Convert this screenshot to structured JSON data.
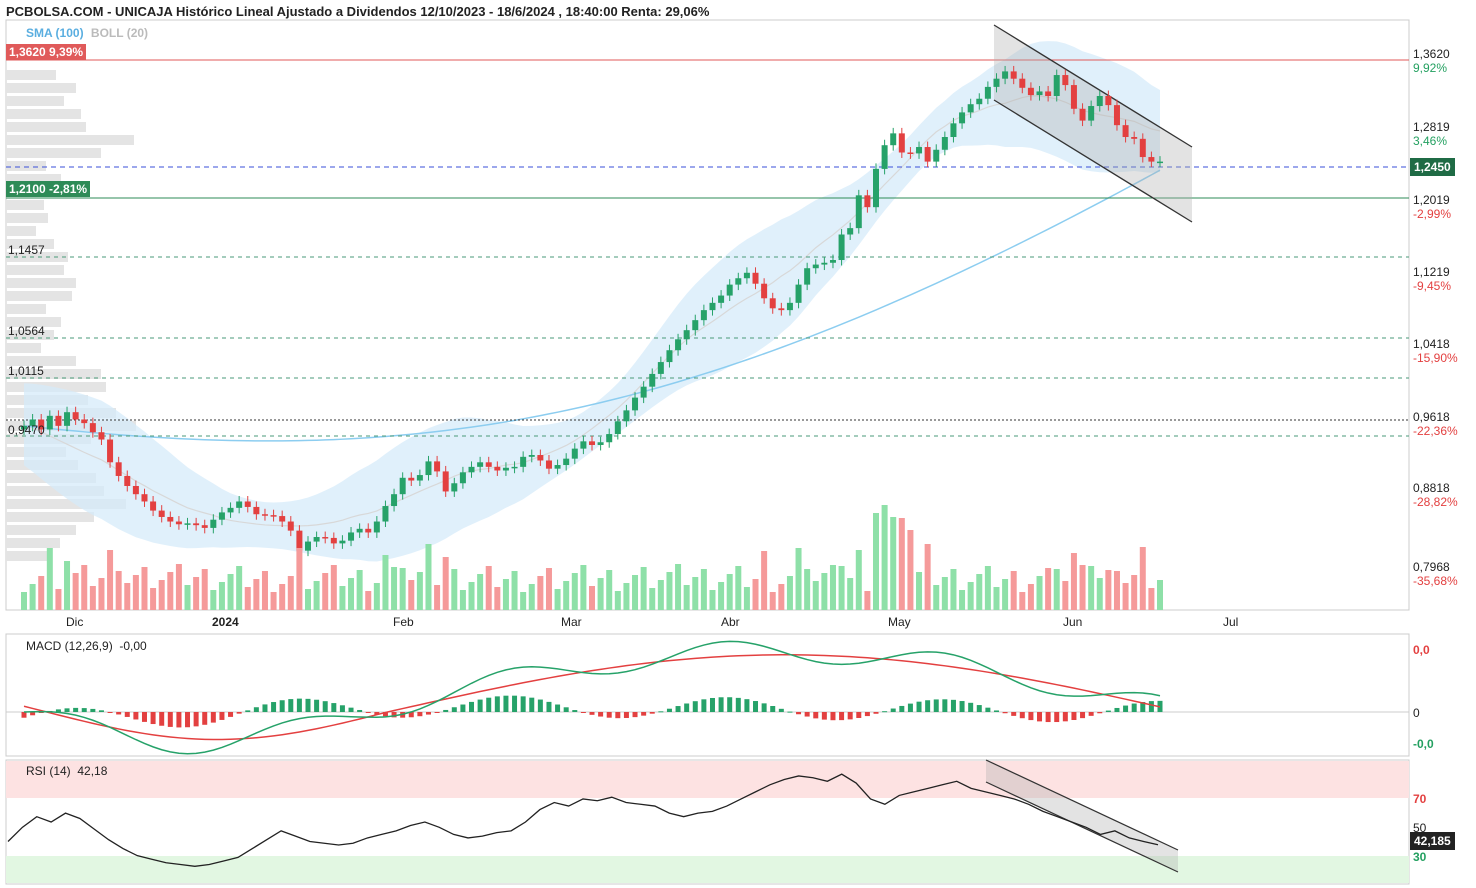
{
  "title": "PCBOLSA.COM - UNICAJA Histórico Lineal Ajustado a Dividendos 12/10/2023 - 18/6/2024 , 18:40:00 Renta: 29,06%",
  "overlay": {
    "sma_label": "SMA (100)",
    "boll_label": "BOLL (20)"
  },
  "levels": {
    "high_box": "1,3620  9,39%",
    "support_box": "1,2100  -2,81%",
    "l1": "1,1457",
    "l2": "1,0564",
    "l3": "1,0115",
    "l4": "0,9470"
  },
  "price_axis": [
    {
      "value": "1,3620",
      "pct": "9,92%",
      "pct_color": "green"
    },
    {
      "value": "1,2819",
      "pct": "3,46%",
      "pct_color": "green"
    },
    {
      "value": "1,2019",
      "pct": "-2,99%",
      "pct_color": "red"
    },
    {
      "value": "1,1219",
      "pct": "-9,45%",
      "pct_color": "red"
    },
    {
      "value": "1,0418",
      "pct": "-15,90%",
      "pct_color": "red"
    },
    {
      "value": "0,9618",
      "pct": "-22,36%",
      "pct_color": "red"
    },
    {
      "value": "0,8818",
      "pct": "-28,82%",
      "pct_color": "red"
    },
    {
      "value": "0,7968",
      "pct": "-35,68%",
      "pct_color": "red"
    }
  ],
  "current_price": "1,2450",
  "months": [
    "Dic",
    "2024",
    "Feb",
    "Mar",
    "Abr",
    "May",
    "Jun",
    "Jul"
  ],
  "macd": {
    "label": "MACD (12,26,9)",
    "value": "-0,00",
    "axis_top": "0,0",
    "axis_mid": "0",
    "axis_bottom": "-0,0"
  },
  "rsi": {
    "label": "RSI (14)",
    "value": "42,18",
    "tag": "42,185",
    "axis_70": "70",
    "axis_50": "50",
    "axis_30": "30"
  },
  "colors": {
    "up": "#26a269",
    "down": "#e34040",
    "sma": "#8ccdf0",
    "boll_fill": "#d6ebfa",
    "volume_up": "#8ee0a8",
    "volume_down": "#f59a9a"
  },
  "chart_data": {
    "type": "candlestick",
    "ylim": [
      0.7968,
      1.362
    ],
    "closes": [
      0.955,
      0.962,
      0.951,
      0.966,
      0.955,
      0.97,
      0.962,
      0.958,
      0.948,
      0.94,
      0.915,
      0.9,
      0.889,
      0.88,
      0.872,
      0.862,
      0.855,
      0.85,
      0.847,
      0.848,
      0.846,
      0.843,
      0.852,
      0.86,
      0.865,
      0.872,
      0.866,
      0.858,
      0.857,
      0.856,
      0.85,
      0.84,
      0.818,
      0.828,
      0.833,
      0.832,
      0.826,
      0.829,
      0.838,
      0.842,
      0.838,
      0.85,
      0.867,
      0.88,
      0.898,
      0.895,
      0.901,
      0.916,
      0.905,
      0.883,
      0.892,
      0.904,
      0.91,
      0.915,
      0.91,
      0.906,
      0.909,
      0.91,
      0.921,
      0.923,
      0.917,
      0.908,
      0.912,
      0.919,
      0.93,
      0.938,
      0.934,
      0.937,
      0.946,
      0.96,
      0.972,
      0.986,
      0.998,
      1.012,
      1.025,
      1.038,
      1.05,
      1.06,
      1.071,
      1.082,
      1.09,
      1.098,
      1.11,
      1.117,
      1.123,
      1.111,
      1.095,
      1.084,
      1.082,
      1.09,
      1.11,
      1.128,
      1.132,
      1.134,
      1.137,
      1.165,
      1.172,
      1.208,
      1.195,
      1.237,
      1.263,
      1.276,
      1.255,
      1.254,
      1.261,
      1.245,
      1.258,
      1.272,
      1.287,
      1.299,
      1.308,
      1.314,
      1.327,
      1.336,
      1.344,
      1.336,
      1.326,
      1.318,
      1.322,
      1.317,
      1.34,
      1.329,
      1.303,
      1.29,
      1.306,
      1.317,
      1.307,
      1.285,
      1.272,
      1.27,
      1.25,
      1.245,
      1.245
    ],
    "volume_scale": "relative",
    "sma100_start": 0.955,
    "sma100_end": 1.215,
    "macd_range": [
      -0.035,
      0.06
    ],
    "rsi_range": [
      20,
      90
    ],
    "rsi_values": [
      44,
      52,
      58,
      55,
      60,
      57,
      51,
      45,
      40,
      36,
      34,
      32,
      31,
      30,
      31,
      33,
      35,
      40,
      45,
      50,
      47,
      44,
      43,
      42,
      43,
      46,
      48,
      50,
      53,
      55,
      52,
      48,
      46,
      47,
      49,
      50,
      55,
      62,
      66,
      64,
      68,
      67,
      69,
      66,
      65,
      64,
      60,
      58,
      60,
      61,
      64,
      68,
      72,
      76,
      79,
      81,
      80,
      78,
      82,
      77,
      68,
      65,
      70,
      72,
      74,
      76,
      78,
      74,
      72,
      70,
      68,
      65,
      61,
      58,
      55,
      52,
      48,
      50,
      46,
      44,
      42.18
    ]
  }
}
